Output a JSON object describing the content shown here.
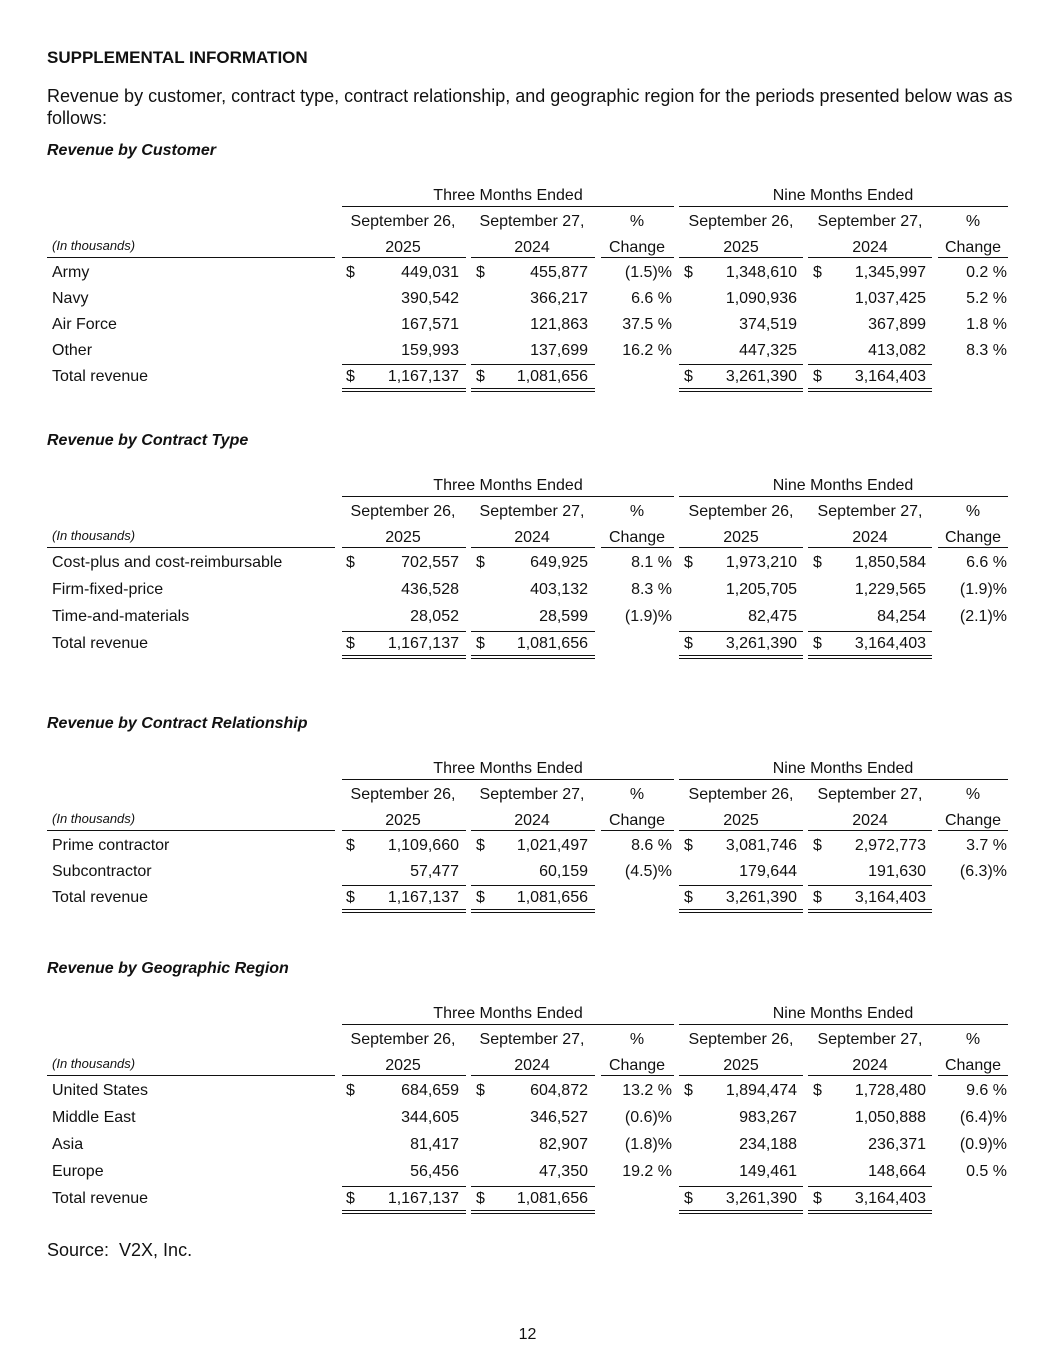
{
  "heading": "SUPPLEMENTAL INFORMATION",
  "intro": "Revenue by customer, contract type, contract relationship, and geographic region for the periods presented below was as follows:",
  "tables": [
    {
      "title": "Revenue by Customer",
      "group_headers": [
        "Three Months Ended",
        "Nine Months Ended"
      ],
      "unit_label": "(In thousands)",
      "column_headers": [
        [
          "September 26,",
          "2025"
        ],
        [
          "September 27,",
          "2024"
        ],
        [
          "%",
          "Change"
        ],
        [
          "September 26,",
          "2025"
        ],
        [
          "September 27,",
          "2024"
        ],
        [
          "%",
          "Change"
        ]
      ],
      "rows": [
        {
          "label": "Army",
          "cells": [
            "$",
            "449,031",
            "$",
            "455,877",
            "(1.5)%",
            "$",
            "1,348,610",
            "$",
            "1,345,997",
            "0.2 %"
          ]
        },
        {
          "label": "Navy",
          "cells": [
            "390,542",
            "366,217",
            "6.6 %",
            "1,090,936",
            "1,037,425",
            "5.2 %"
          ]
        },
        {
          "label": "Air Force",
          "cells": [
            "167,571",
            "121,863",
            "37.5 %",
            "374,519",
            "367,899",
            "1.8 %"
          ]
        },
        {
          "label": "Other",
          "cells": [
            "159,993",
            "137,699",
            "16.2 %",
            "447,325",
            "413,082",
            "8.3 %"
          ]
        },
        {
          "label": "Total revenue",
          "cells": [
            "$",
            "1,167,137",
            "$",
            "1,081,656",
            "$",
            "3,261,390",
            "$",
            "3,164,403"
          ]
        }
      ]
    },
    {
      "title": "Revenue by Contract Type",
      "group_headers": [
        "Three Months Ended",
        "Nine Months Ended"
      ],
      "unit_label": "(In thousands)",
      "column_headers": [
        [
          "September 26,",
          "2025"
        ],
        [
          "September 27,",
          "2024"
        ],
        [
          "%",
          "Change"
        ],
        [
          "September 26,",
          "2025"
        ],
        [
          "September 27,",
          "2024"
        ],
        [
          "%",
          "Change"
        ]
      ],
      "rows": [
        {
          "label": "Cost-plus and cost-reimbursable",
          "cells": [
            "$",
            "702,557",
            "$",
            "649,925",
            "8.1 %",
            "$",
            "1,973,210",
            "$",
            "1,850,584",
            "6.6 %"
          ]
        },
        {
          "label": "Firm-fixed-price",
          "cells": [
            "436,528",
            "403,132",
            "8.3 %",
            "1,205,705",
            "1,229,565",
            "(1.9)%"
          ]
        },
        {
          "label": "Time-and-materials",
          "cells": [
            "28,052",
            "28,599",
            "(1.9)%",
            "82,475",
            "84,254",
            "(2.1)%"
          ]
        },
        {
          "label": "Total revenue",
          "cells": [
            "$",
            "1,167,137",
            "$",
            "1,081,656",
            "$",
            "3,261,390",
            "$",
            "3,164,403"
          ]
        }
      ]
    },
    {
      "title": "Revenue by Contract Relationship",
      "group_headers": [
        "Three Months Ended",
        "Nine Months Ended"
      ],
      "unit_label": "(In thousands)",
      "column_headers": [
        [
          "September 26,",
          "2025"
        ],
        [
          "September 27,",
          "2024"
        ],
        [
          "%",
          "Change"
        ],
        [
          "September 26,",
          "2025"
        ],
        [
          "September 27,",
          "2024"
        ],
        [
          "%",
          "Change"
        ]
      ],
      "rows": [
        {
          "label": "Prime contractor",
          "cells": [
            "$",
            "1,109,660",
            "$",
            "1,021,497",
            "8.6 %",
            "$",
            "3,081,746",
            "$",
            "2,972,773",
            "3.7 %"
          ]
        },
        {
          "label": "Subcontractor",
          "cells": [
            "57,477",
            "60,159",
            "(4.5)%",
            "179,644",
            "191,630",
            "(6.3)%"
          ]
        },
        {
          "label": "Total revenue",
          "cells": [
            "$",
            "1,167,137",
            "$",
            "1,081,656",
            "$",
            "3,261,390",
            "$",
            "3,164,403"
          ]
        }
      ]
    },
    {
      "title": "Revenue by Geographic Region",
      "group_headers": [
        "Three Months Ended",
        "Nine Months Ended"
      ],
      "unit_label": "(In thousands)",
      "column_headers": [
        [
          "September 26,",
          "2025"
        ],
        [
          "September 27,",
          "2024"
        ],
        [
          "%",
          "Change"
        ],
        [
          "September 26,",
          "2025"
        ],
        [
          "September 27,",
          "2024"
        ],
        [
          "%",
          "Change"
        ]
      ],
      "rows": [
        {
          "label": "United States",
          "cells": [
            "$",
            "684,659",
            "$",
            "604,872",
            "13.2 %",
            "$",
            "1,894,474",
            "$",
            "1,728,480",
            "9.6 %"
          ]
        },
        {
          "label": "Middle East",
          "cells": [
            "344,605",
            "346,527",
            "(0.6)%",
            "983,267",
            "1,050,888",
            "(6.4)%"
          ]
        },
        {
          "label": "Asia",
          "cells": [
            "81,417",
            "82,907",
            "(1.8)%",
            "234,188",
            "236,371",
            "(0.9)%"
          ]
        },
        {
          "label": "Europe",
          "cells": [
            "56,456",
            "47,350",
            "19.2 %",
            "149,461",
            "148,664",
            "0.5 %"
          ]
        },
        {
          "label": "Total revenue",
          "cells": [
            "$",
            "1,167,137",
            "$",
            "1,081,656",
            "$",
            "3,261,390",
            "$",
            "3,164,403"
          ]
        }
      ]
    }
  ],
  "source": "Source:  V2X, Inc.",
  "page_number": "12"
}
